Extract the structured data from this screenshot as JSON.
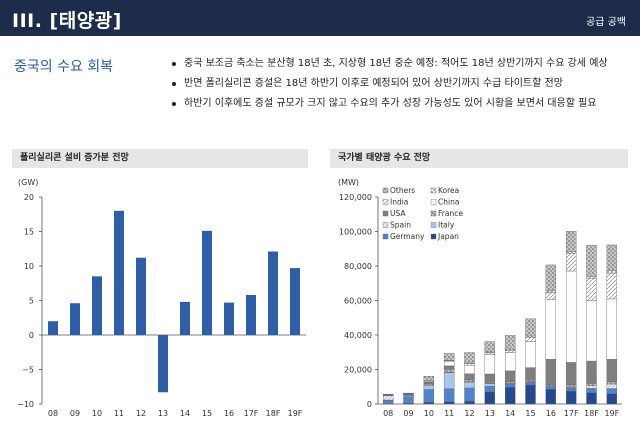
{
  "header": {
    "title": "III. [태양광]",
    "tag": "공급 공백"
  },
  "section": {
    "label": "중국의 수요 회복"
  },
  "bullets": [
    "중국 보조금 축소는 분산형 18년 초, 지상형 18년 중순 예정: 적어도 18년 상반기까지 수요 강세 예상",
    "반면 폴리실리콘 증설은 18년 하반기 이후로 예정되어 있어 상반기까지 수급 타이트할 전망",
    "하반기 이후에도 증설 규모가 크지 않고 수요의 추가 성장 가능성도 있어 시황을 보면서 대응할 필요"
  ],
  "colors": {
    "header_bg": "#1d2c4b",
    "accent_text": "#2a5aa6",
    "bar_blue": "#2e5ea8"
  },
  "chart_data": [
    {
      "type": "bar",
      "title": "폴리실리콘 설비 증가분 전망",
      "unit": "(GW)",
      "categories": [
        "08",
        "09",
        "10",
        "11",
        "12",
        "13",
        "14",
        "15",
        "16",
        "17F",
        "18F",
        "19F"
      ],
      "values": [
        2,
        4.6,
        8.5,
        18,
        11.2,
        -8.3,
        4.8,
        15.1,
        4.7,
        5.8,
        12.1,
        9.7
      ],
      "ylim": [
        -10,
        20
      ],
      "yticks": [
        20,
        15,
        10,
        5,
        0,
        -5,
        -10
      ],
      "ytick_labels": [
        "20",
        "15",
        "10",
        "5",
        "0",
        "−5",
        "−10"
      ],
      "color": "#2e5ea8"
    },
    {
      "type": "bar",
      "stacked": true,
      "title": "국가별 태양광 수요 전망",
      "unit": "(MW)",
      "categories": [
        "08",
        "09",
        "10",
        "11",
        "12",
        "13",
        "14",
        "15",
        "16",
        "17F",
        "18F",
        "19F"
      ],
      "ylim": [
        0,
        120000
      ],
      "yticks": [
        120000,
        100000,
        80000,
        60000,
        40000,
        20000,
        0
      ],
      "ytick_labels": [
        "120,000",
        "100,000",
        "80,000",
        "60,000",
        "40,000",
        "20,000",
        "0"
      ],
      "legend_position": "top-left",
      "series": [
        {
          "name": "Japan",
          "legend_style": "solid-dark",
          "values": [
            200,
            500,
            1000,
            1300,
            1700,
            7000,
            9700,
            11000,
            8600,
            7500,
            6500,
            6000
          ]
        },
        {
          "name": "Germany",
          "legend_style": "solid-mid",
          "values": [
            1800,
            3800,
            7400,
            7500,
            7600,
            3300,
            1900,
            1500,
            1500,
            1800,
            2200,
            2500
          ]
        },
        {
          "name": "Italy",
          "legend_style": "solid-light",
          "values": [
            300,
            700,
            2300,
            9300,
            3400,
            1500,
            400,
            300,
            400,
            400,
            500,
            600
          ]
        },
        {
          "name": "Spain",
          "legend_style": "hatch-light",
          "values": [
            2500,
            100,
            400,
            400,
            300,
            200,
            100,
            100,
            100,
            500,
            1500,
            2500
          ]
        },
        {
          "name": "France",
          "legend_style": "hatch-grey",
          "values": [
            100,
            200,
            700,
            1700,
            1100,
            600,
            900,
            900,
            600,
            900,
            1200,
            1300
          ]
        },
        {
          "name": "USA",
          "legend_style": "solid-grey",
          "values": [
            300,
            400,
            900,
            1900,
            3400,
            4800,
            6200,
            7300,
            14700,
            13000,
            13000,
            13000
          ]
        },
        {
          "name": "China",
          "legend_style": "outline-white",
          "values": [
            100,
            200,
            500,
            2700,
            5000,
            11300,
            10600,
            15100,
            34500,
            53000,
            35000,
            35000
          ]
        },
        {
          "name": "India",
          "legend_style": "diagonal",
          "values": [
            0,
            0,
            100,
            300,
            1000,
            1100,
            1100,
            2200,
            4300,
            10000,
            13000,
            15000
          ]
        },
        {
          "name": "Korea",
          "legend_style": "crosshatch",
          "values": [
            300,
            200,
            200,
            200,
            300,
            400,
            900,
            1000,
            900,
            1100,
            1200,
            1300
          ]
        },
        {
          "name": "Others",
          "legend_style": "dot-grey",
          "values": [
            100,
            200,
            2500,
            4000,
            6000,
            6000,
            8000,
            10000,
            15000,
            12000,
            18000,
            15000
          ]
        }
      ]
    }
  ]
}
